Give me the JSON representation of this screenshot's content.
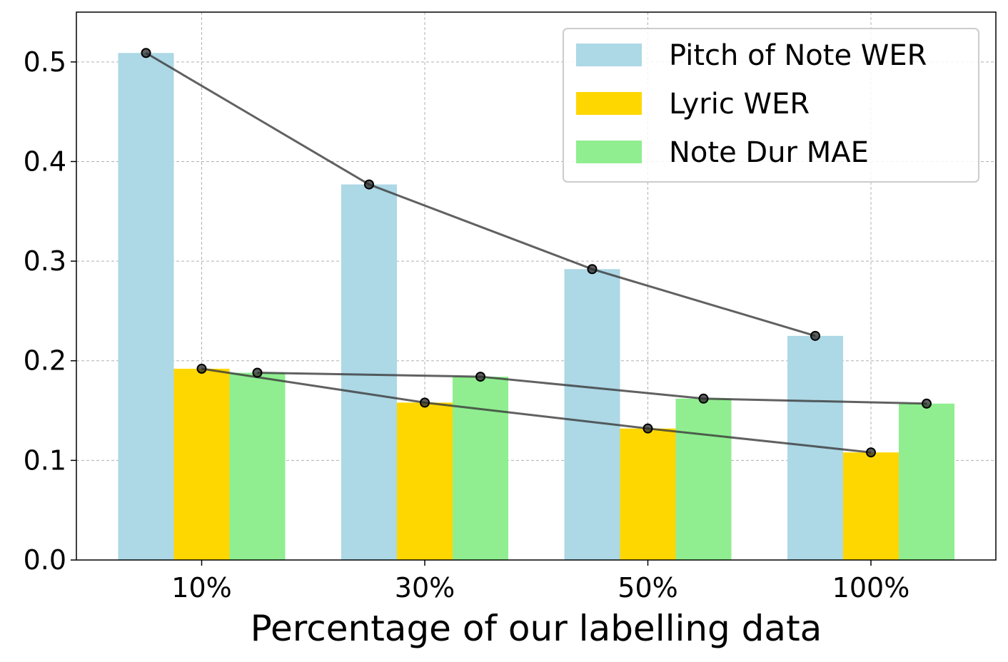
{
  "chart_data": {
    "type": "bar",
    "title": "",
    "xlabel": "Percentage of our labelling data",
    "ylabel": "",
    "categories": [
      "10%",
      "30%",
      "50%",
      "100%"
    ],
    "ylim": [
      0,
      0.55
    ],
    "yticks": [
      0.0,
      0.1,
      0.2,
      0.3,
      0.4,
      0.5
    ],
    "ytick_labels": [
      "0.0",
      "0.1",
      "0.2",
      "0.3",
      "0.4",
      "0.5"
    ],
    "grid": true,
    "legend_position": "top-right",
    "overlay": "line with markers connecting each series' bar tops",
    "series": [
      {
        "name": "Pitch of Note WER",
        "color": "#add8e6",
        "values": [
          0.509,
          0.377,
          0.292,
          0.225
        ]
      },
      {
        "name": "Lyric WER",
        "color": "#ffd700",
        "values": [
          0.192,
          0.158,
          0.132,
          0.108
        ]
      },
      {
        "name": "Note Dur MAE",
        "color": "#90ee90",
        "values": [
          0.188,
          0.184,
          0.162,
          0.157
        ]
      }
    ]
  }
}
